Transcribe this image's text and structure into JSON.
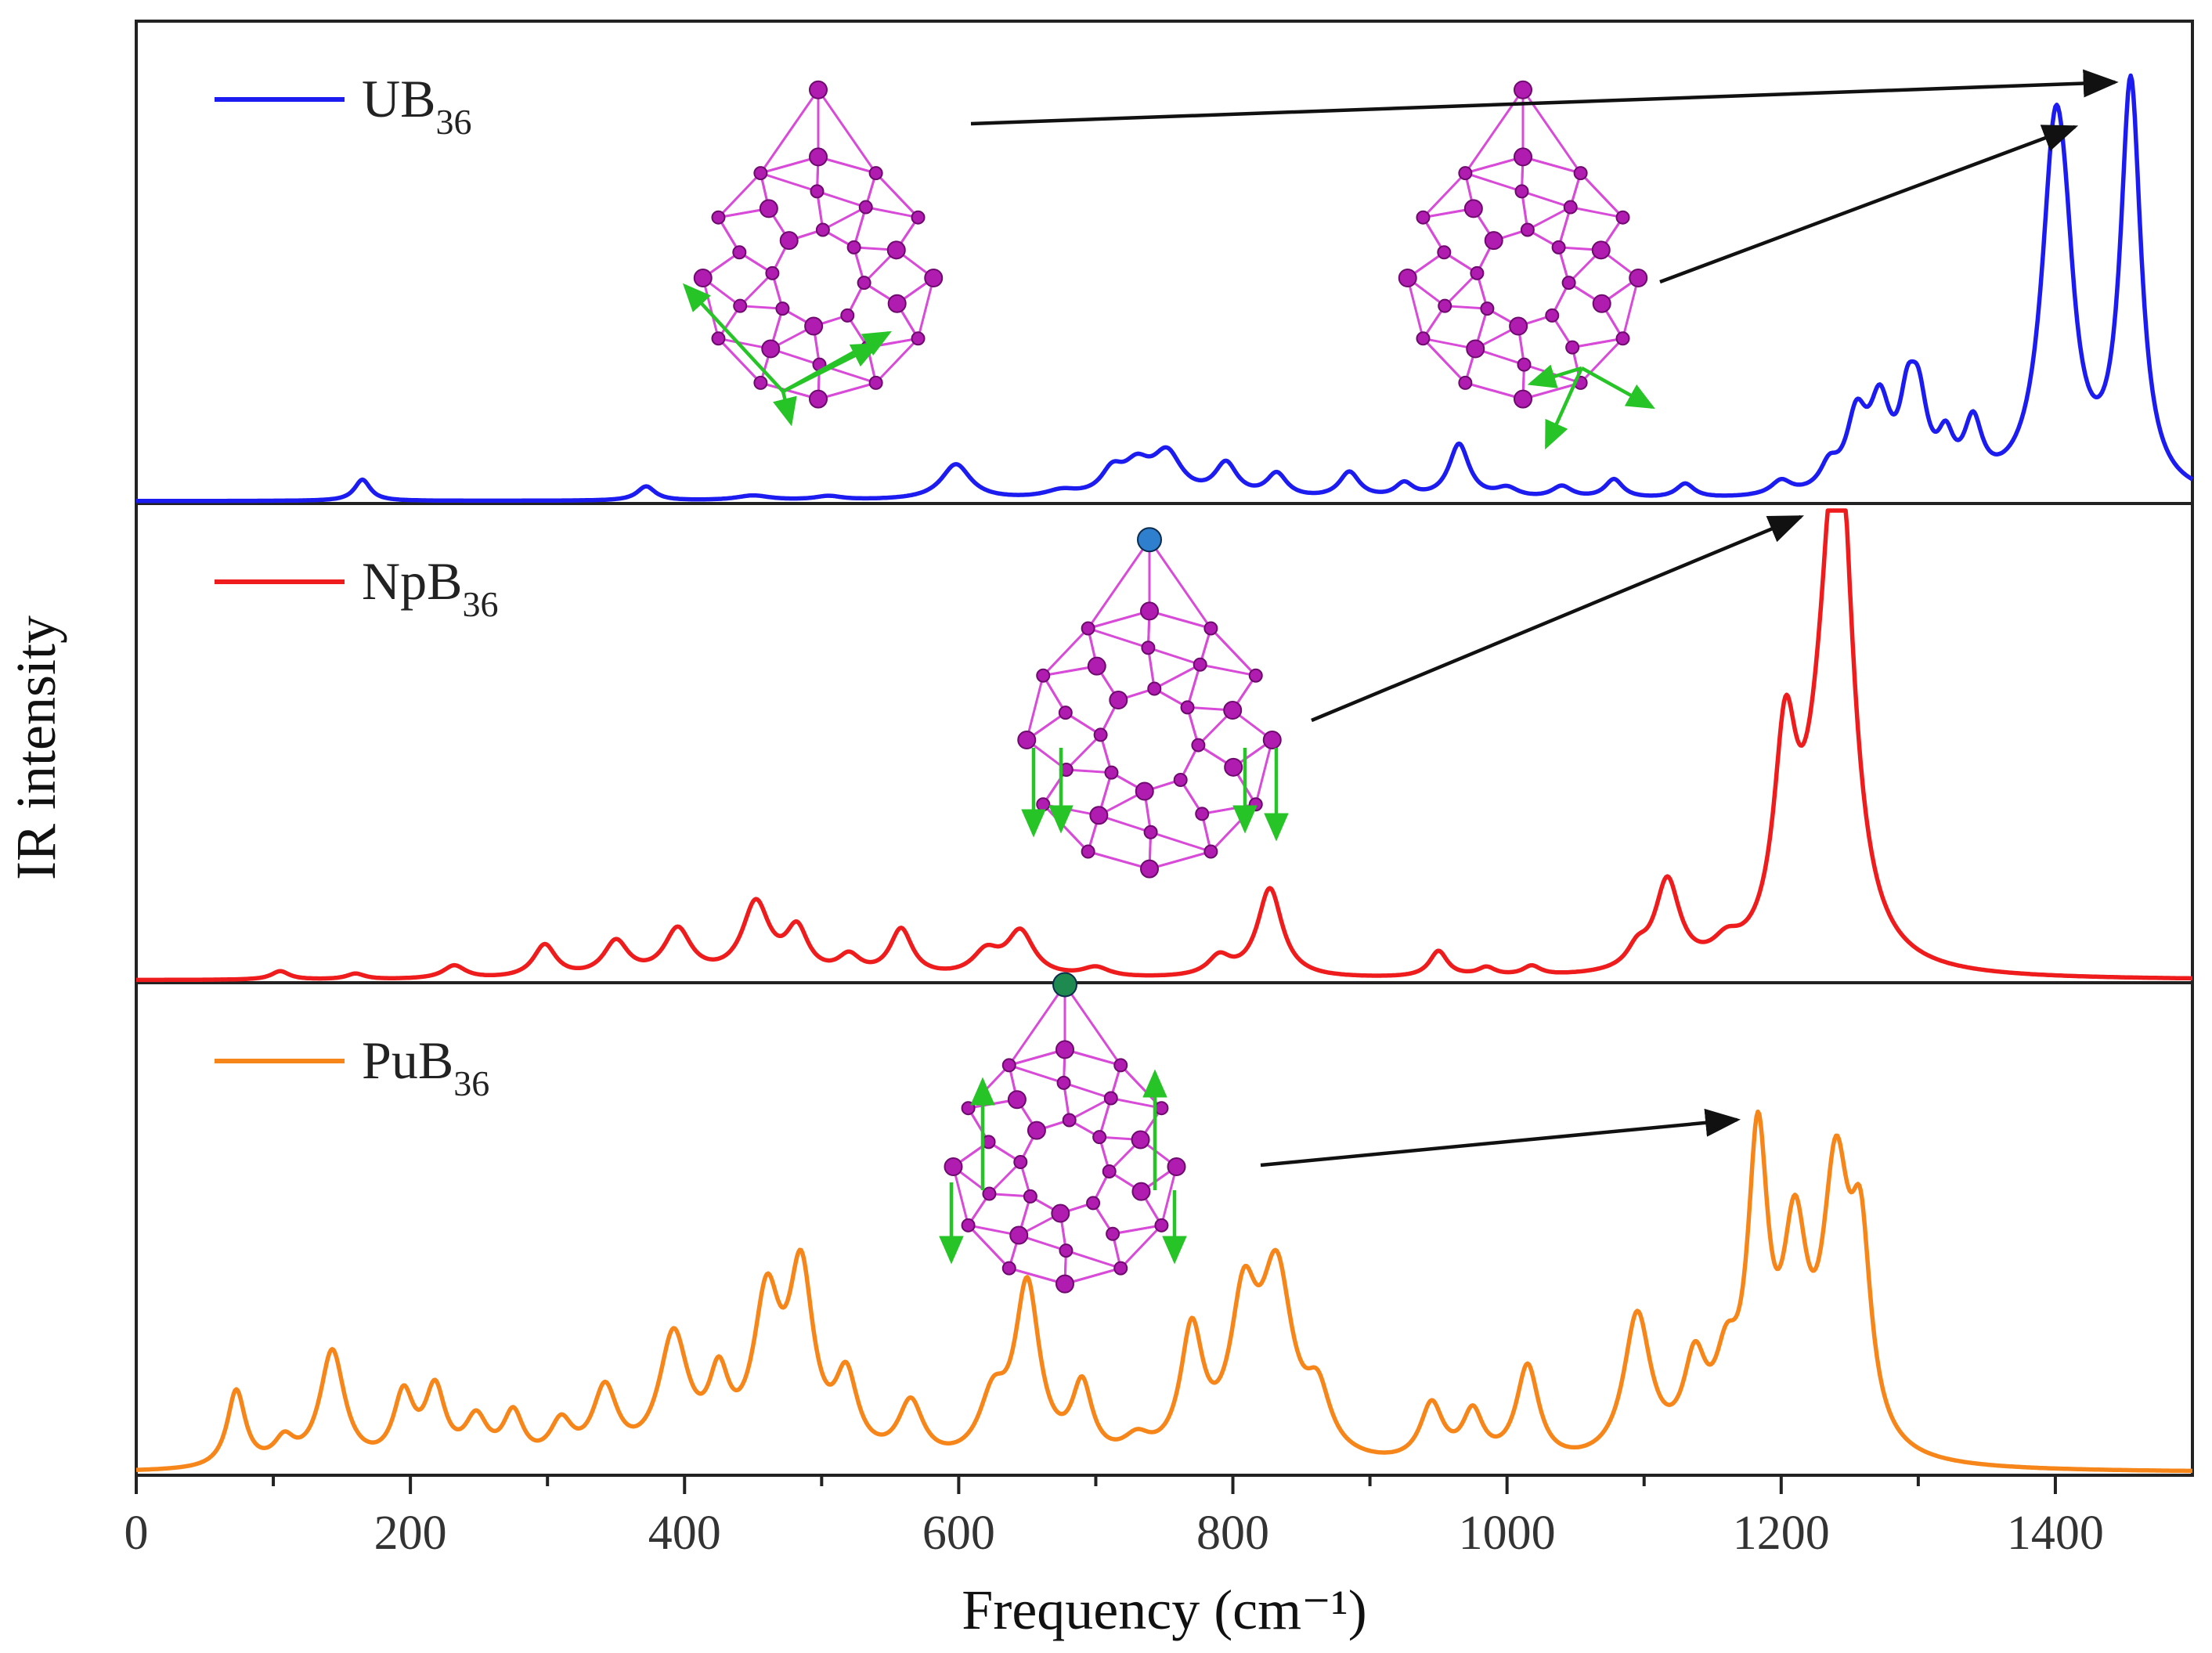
{
  "chart_data": {
    "type": "line",
    "layout": "three stacked panels sharing x-axis",
    "xlabel": "Frequency (cm⁻¹)",
    "ylabel": "IR intensity",
    "xlim": [
      0,
      1500
    ],
    "xticks": [
      0,
      200,
      400,
      600,
      800,
      1000,
      1200,
      1400
    ],
    "xtick_labels": [
      "0",
      "200",
      "400",
      "600",
      "800",
      "1000",
      "1200",
      "1400"
    ],
    "yticks": "none",
    "series": [
      {
        "name": "UB36",
        "label_main": "UB",
        "label_sub": "36",
        "color": "#1c1cf0",
        "panel": 0,
        "inset_pointer_targets_cm": [
          1455,
          1400
        ],
        "peaks": [
          [
            165,
            0.045,
            7
          ],
          [
            372,
            0.03,
            8
          ],
          [
            450,
            0.01,
            15
          ],
          [
            505,
            0.008,
            12
          ],
          [
            598,
            0.075,
            13
          ],
          [
            675,
            0.015,
            15
          ],
          [
            712,
            0.05,
            10
          ],
          [
            730,
            0.06,
            12
          ],
          [
            752,
            0.09,
            13
          ],
          [
            795,
            0.07,
            10
          ],
          [
            832,
            0.05,
            9
          ],
          [
            885,
            0.055,
            9
          ],
          [
            925,
            0.03,
            8
          ],
          [
            965,
            0.115,
            9
          ],
          [
            1000,
            0.02,
            10
          ],
          [
            1040,
            0.025,
            9
          ],
          [
            1078,
            0.04,
            8
          ],
          [
            1130,
            0.03,
            8
          ],
          [
            1200,
            0.03,
            9
          ],
          [
            1235,
            0.05,
            8
          ],
          [
            1255,
            0.15,
            9
          ],
          [
            1272,
            0.17,
            9
          ],
          [
            1292,
            0.14,
            7
          ],
          [
            1300,
            0.17,
            8
          ],
          [
            1320,
            0.09,
            7
          ],
          [
            1340,
            0.13,
            8
          ],
          [
            1400,
            0.74,
            12
          ],
          [
            1408,
            0.13,
            8
          ],
          [
            1455,
            0.86,
            9
          ]
        ]
      },
      {
        "name": "NpB36",
        "label_main": "NpB",
        "label_sub": "36",
        "color": "#ee1c1c",
        "panel": 1,
        "inset_pointer_targets_cm": [
          1240
        ],
        "peaks": [
          [
            105,
            0.018,
            8
          ],
          [
            160,
            0.012,
            8
          ],
          [
            232,
            0.028,
            10
          ],
          [
            298,
            0.07,
            10
          ],
          [
            350,
            0.075,
            11
          ],
          [
            395,
            0.1,
            12
          ],
          [
            452,
            0.155,
            12
          ],
          [
            482,
            0.095,
            10
          ],
          [
            520,
            0.04,
            10
          ],
          [
            558,
            0.1,
            10
          ],
          [
            620,
            0.05,
            12
          ],
          [
            645,
            0.095,
            12
          ],
          [
            700,
            0.02,
            12
          ],
          [
            790,
            0.04,
            10
          ],
          [
            827,
            0.19,
            11
          ],
          [
            950,
            0.055,
            8
          ],
          [
            985,
            0.018,
            8
          ],
          [
            1018,
            0.02,
            8
          ],
          [
            1095,
            0.04,
            9
          ],
          [
            1117,
            0.19,
            11
          ],
          [
            1160,
            0.04,
            12
          ],
          [
            1203,
            0.43,
            10
          ],
          [
            1242,
            0.97,
            12
          ],
          [
            1232,
            0.3,
            18
          ]
        ]
      },
      {
        "name": "PuB36",
        "label_main": "PuB",
        "label_sub": "36",
        "color": "#f7861a",
        "panel": 2,
        "inset_pointer_targets_cm": [
          1185
        ],
        "peaks": [
          [
            73,
            0.16,
            8
          ],
          [
            108,
            0.05,
            9
          ],
          [
            143,
            0.24,
            11
          ],
          [
            195,
            0.14,
            9
          ],
          [
            218,
            0.15,
            9
          ],
          [
            248,
            0.09,
            10
          ],
          [
            275,
            0.1,
            9
          ],
          [
            310,
            0.08,
            10
          ],
          [
            342,
            0.15,
            11
          ],
          [
            392,
            0.26,
            13
          ],
          [
            425,
            0.15,
            9
          ],
          [
            460,
            0.32,
            12
          ],
          [
            485,
            0.37,
            11
          ],
          [
            518,
            0.16,
            10
          ],
          [
            565,
            0.12,
            11
          ],
          [
            625,
            0.12,
            12
          ],
          [
            650,
            0.36,
            11
          ],
          [
            690,
            0.15,
            9
          ],
          [
            730,
            0.04,
            12
          ],
          [
            770,
            0.26,
            10
          ],
          [
            808,
            0.3,
            12
          ],
          [
            832,
            0.37,
            14
          ],
          [
            862,
            0.12,
            11
          ],
          [
            945,
            0.12,
            10
          ],
          [
            975,
            0.1,
            9
          ],
          [
            1015,
            0.2,
            10
          ],
          [
            1095,
            0.3,
            12
          ],
          [
            1137,
            0.18,
            10
          ],
          [
            1160,
            0.15,
            10
          ],
          [
            1183,
            0.62,
            9
          ],
          [
            1210,
            0.41,
            11
          ],
          [
            1240,
            0.55,
            12
          ],
          [
            1258,
            0.38,
            9
          ]
        ]
      }
    ],
    "annotations": [
      "molecular-structure insets with green vibration-mode arrows; black arrows pointing to main peaks"
    ]
  }
}
